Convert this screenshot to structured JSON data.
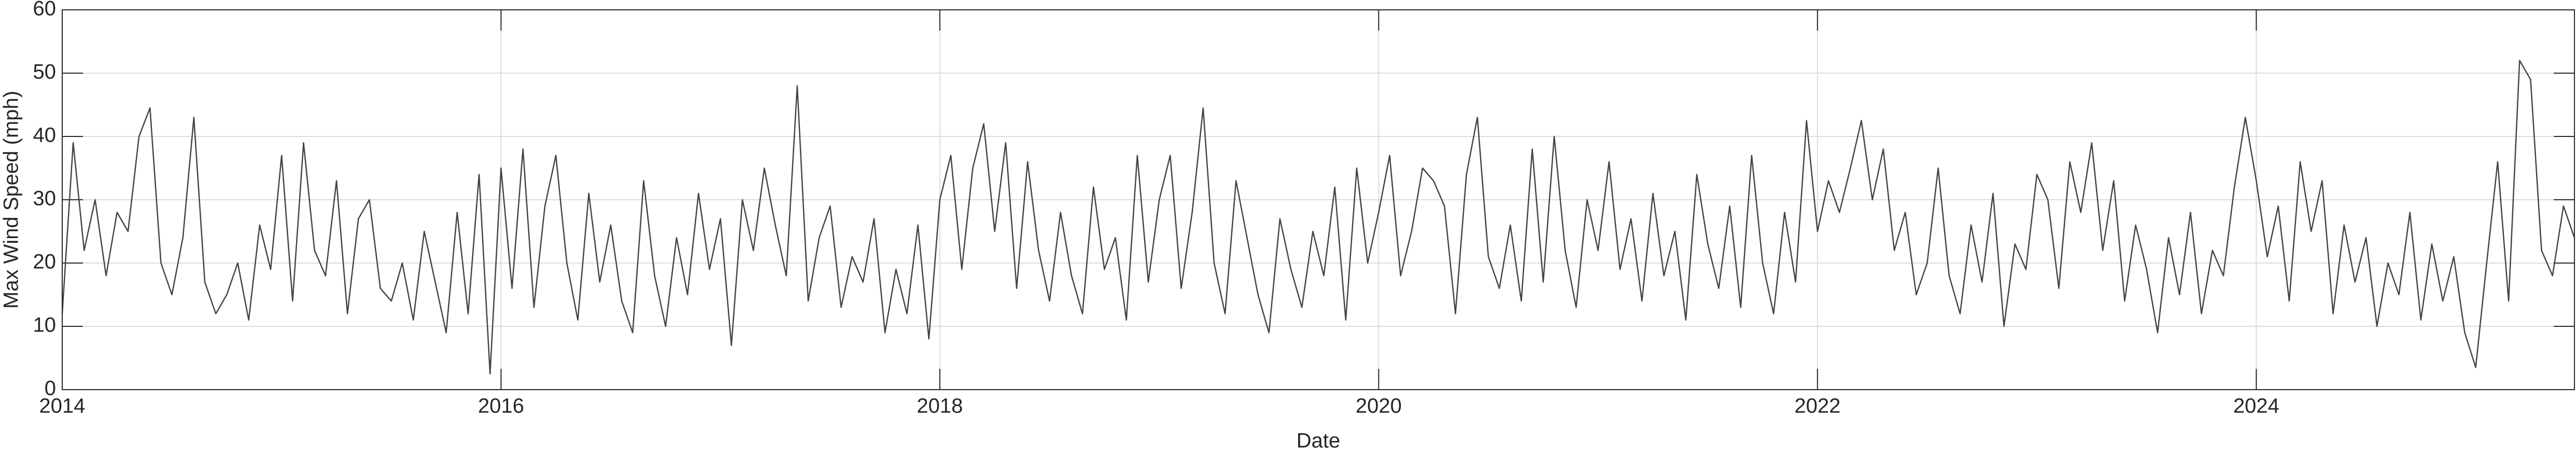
{
  "chart_data": {
    "type": "line",
    "xlabel": "Date",
    "ylabel": "Max Wind Speed (mph)",
    "xlim": [
      2014,
      2025.45
    ],
    "xticks": [
      2014,
      2016,
      2018,
      2020,
      2022,
      2024
    ],
    "ylim": [
      0,
      60
    ],
    "yticks": [
      0,
      10,
      20,
      30,
      40,
      50,
      60
    ],
    "grid": true,
    "x": [
      2014,
      2014.05,
      2014.1,
      2014.15,
      2014.2,
      2014.25,
      2014.3,
      2014.35,
      2014.4,
      2014.45,
      2014.5,
      2014.55,
      2014.6,
      2014.65,
      2014.7,
      2014.75,
      2014.8,
      2014.85,
      2014.9,
      2014.95,
      2015,
      2015.05,
      2015.1,
      2015.15,
      2015.2,
      2015.25,
      2015.3,
      2015.35,
      2015.4,
      2015.45,
      2015.5,
      2015.55,
      2015.6,
      2015.65,
      2015.7,
      2015.75,
      2015.8,
      2015.85,
      2015.9,
      2015.95,
      2016,
      2016.05,
      2016.1,
      2016.15,
      2016.2,
      2016.25,
      2016.3,
      2016.35,
      2016.4,
      2016.45,
      2016.5,
      2016.55,
      2016.6,
      2016.65,
      2016.7,
      2016.75,
      2016.8,
      2016.85,
      2016.9,
      2016.95,
      2017,
      2017.05,
      2017.1,
      2017.15,
      2017.2,
      2017.25,
      2017.3,
      2017.35,
      2017.4,
      2017.45,
      2017.5,
      2017.55,
      2017.6,
      2017.65,
      2017.7,
      2017.75,
      2017.8,
      2017.85,
      2017.9,
      2017.95,
      2018,
      2018.05,
      2018.1,
      2018.15,
      2018.2,
      2018.25,
      2018.3,
      2018.35,
      2018.4,
      2018.45,
      2018.5,
      2018.55,
      2018.6,
      2018.65,
      2018.7,
      2018.75,
      2018.8,
      2018.85,
      2018.9,
      2018.95,
      2019,
      2019.05,
      2019.1,
      2019.15,
      2019.2,
      2019.25,
      2019.3,
      2019.35,
      2019.4,
      2019.45,
      2019.5,
      2019.55,
      2019.6,
      2019.65,
      2019.7,
      2019.75,
      2019.8,
      2019.85,
      2019.9,
      2019.95,
      2020,
      2020.05,
      2020.1,
      2020.15,
      2020.2,
      2020.25,
      2020.3,
      2020.35,
      2020.4,
      2020.45,
      2020.5,
      2020.55,
      2020.6,
      2020.65,
      2020.7,
      2020.75,
      2020.8,
      2020.85,
      2020.9,
      2020.95,
      2021,
      2021.05,
      2021.1,
      2021.15,
      2021.2,
      2021.25,
      2021.3,
      2021.35,
      2021.4,
      2021.45,
      2021.5,
      2021.55,
      2021.6,
      2021.65,
      2021.7,
      2021.75,
      2021.8,
      2021.85,
      2021.9,
      2021.95,
      2022,
      2022.05,
      2022.1,
      2022.15,
      2022.2,
      2022.25,
      2022.3,
      2022.35,
      2022.4,
      2022.45,
      2022.5,
      2022.55,
      2022.6,
      2022.65,
      2022.7,
      2022.75,
      2022.8,
      2022.85,
      2022.9,
      2022.95,
      2023,
      2023.05,
      2023.1,
      2023.15,
      2023.2,
      2023.25,
      2023.3,
      2023.35,
      2023.4,
      2023.45,
      2023.5,
      2023.55,
      2023.6,
      2023.65,
      2023.7,
      2023.75,
      2023.8,
      2023.85,
      2023.9,
      2023.95,
      2024,
      2024.05,
      2024.1,
      2024.15,
      2024.2,
      2024.25,
      2024.3,
      2024.35,
      2024.4,
      2024.45,
      2024.5,
      2024.55,
      2024.6,
      2024.65,
      2024.7,
      2024.75,
      2024.8,
      2024.85,
      2024.9,
      2024.95,
      2025,
      2025.05,
      2025.1,
      2025.15,
      2025.2,
      2025.25,
      2025.3,
      2025.35,
      2025.4,
      2025.45
    ],
    "series": [
      {
        "color": "#444444",
        "values": [
          12,
          39,
          22,
          30,
          18,
          28,
          25,
          40,
          44.5,
          20,
          15,
          24,
          43,
          17,
          12,
          15,
          20,
          11,
          26,
          19,
          37,
          14,
          39,
          22,
          18,
          33,
          12,
          27,
          30,
          16,
          14,
          20,
          11,
          25,
          17,
          9,
          28,
          12,
          34,
          2.5,
          35,
          16,
          38,
          13,
          29,
          37,
          20,
          11,
          31,
          17,
          26,
          14,
          9,
          33,
          18,
          10,
          24,
          15,
          31,
          19,
          27,
          7,
          30,
          22,
          35,
          26,
          18,
          48,
          14,
          24,
          29,
          13,
          21,
          17,
          27,
          9,
          19,
          12,
          26,
          8,
          30,
          37,
          19,
          35,
          42,
          25,
          39,
          16,
          36,
          22,
          14,
          28,
          18,
          12,
          32,
          19,
          24,
          11,
          37,
          17,
          30,
          37,
          16,
          28,
          44.5,
          20,
          12,
          33,
          24,
          15,
          9,
          27,
          19,
          13,
          25,
          18,
          32,
          11,
          35,
          20,
          28,
          37,
          18,
          25,
          35,
          33,
          29,
          12,
          34,
          43,
          21,
          16,
          26,
          14,
          38,
          17,
          40,
          22,
          13,
          30,
          22,
          36,
          19,
          27,
          14,
          31,
          18,
          25,
          11,
          34,
          23,
          16,
          29,
          13,
          37,
          20,
          12,
          28,
          17,
          42.5,
          25,
          33,
          28,
          35,
          42.5,
          30,
          38,
          22,
          28,
          15,
          20,
          35,
          18,
          12,
          26,
          17,
          31,
          10,
          23,
          19,
          34,
          30,
          16,
          36,
          28,
          39,
          22,
          33,
          14,
          26,
          19,
          9,
          24,
          15,
          28,
          12,
          22,
          18,
          32,
          43,
          33,
          21,
          29,
          14,
          36,
          25,
          33,
          12,
          26,
          17,
          24,
          10,
          20,
          15,
          28,
          11,
          23,
          14,
          21,
          9,
          3.5,
          20,
          36,
          14,
          52,
          49,
          22,
          18,
          29,
          24
        ]
      }
    ]
  }
}
